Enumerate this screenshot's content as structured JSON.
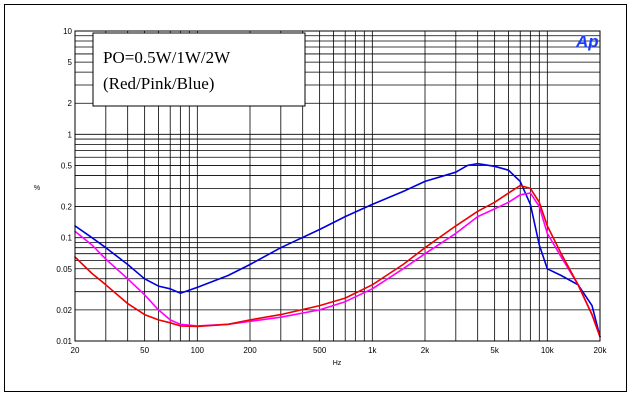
{
  "chart_data": {
    "type": "line",
    "title": "",
    "xlabel": "Hz",
    "ylabel": "%",
    "xscale": "log",
    "yscale": "log",
    "xlim": [
      20,
      20000
    ],
    "ylim": [
      0.01,
      10
    ],
    "grid": true,
    "x_ticks": [
      20,
      50,
      100,
      200,
      500,
      1000,
      2000,
      5000,
      10000,
      20000
    ],
    "x_tick_labels": [
      "20",
      "50",
      "100",
      "200",
      "500",
      "1k",
      "2k",
      "5k",
      "10k",
      "20k"
    ],
    "y_ticks": [
      0.01,
      0.02,
      0.05,
      0.1,
      0.2,
      0.5,
      1,
      2,
      5,
      10
    ],
    "y_tick_labels": [
      "0.01",
      "0.02",
      "0.05",
      "0.1",
      "0.2",
      "0.5",
      "1",
      "2",
      "5",
      "10"
    ],
    "annotation": [
      "PO=0.5W/1W/2W",
      "(Red/Pink/Blue)"
    ],
    "logo": "Ap",
    "series": [
      {
        "color": "#0000dd",
        "x": [
          20,
          25,
          30,
          40,
          50,
          60,
          70,
          80,
          100,
          150,
          200,
          300,
          500,
          700,
          1000,
          1500,
          2000,
          3000,
          3500,
          4000,
          5000,
          6000,
          7000,
          8000,
          9000,
          10000,
          12000,
          15000,
          18000,
          20000
        ],
        "y": [
          0.13,
          0.1,
          0.08,
          0.055,
          0.04,
          0.034,
          0.032,
          0.029,
          0.033,
          0.043,
          0.055,
          0.08,
          0.12,
          0.16,
          0.21,
          0.28,
          0.35,
          0.43,
          0.5,
          0.52,
          0.49,
          0.45,
          0.35,
          0.21,
          0.085,
          0.05,
          0.043,
          0.035,
          0.022,
          0.011
        ]
      },
      {
        "color": "#ff00ff",
        "x": [
          20,
          25,
          30,
          40,
          50,
          60,
          70,
          80,
          100,
          150,
          200,
          300,
          500,
          700,
          1000,
          1500,
          2000,
          3000,
          4000,
          5000,
          6000,
          7000,
          8000,
          9000,
          10000,
          12000,
          15000,
          18000,
          20000
        ],
        "y": [
          0.115,
          0.085,
          0.062,
          0.04,
          0.028,
          0.02,
          0.016,
          0.0145,
          0.014,
          0.0145,
          0.0155,
          0.017,
          0.02,
          0.024,
          0.032,
          0.05,
          0.07,
          0.11,
          0.16,
          0.19,
          0.22,
          0.26,
          0.27,
          0.2,
          0.11,
          0.065,
          0.035,
          0.018,
          0.011
        ]
      },
      {
        "color": "#ee0000",
        "x": [
          20,
          25,
          30,
          40,
          50,
          60,
          70,
          80,
          100,
          150,
          200,
          300,
          500,
          700,
          1000,
          1500,
          2000,
          3000,
          4000,
          5000,
          6000,
          7000,
          8000,
          9000,
          10000,
          12000,
          15000,
          18000,
          20000
        ],
        "y": [
          0.065,
          0.045,
          0.035,
          0.023,
          0.018,
          0.016,
          0.015,
          0.014,
          0.0138,
          0.0145,
          0.016,
          0.018,
          0.022,
          0.026,
          0.035,
          0.055,
          0.08,
          0.13,
          0.18,
          0.22,
          0.27,
          0.32,
          0.3,
          0.22,
          0.13,
          0.07,
          0.035,
          0.018,
          0.011
        ]
      }
    ]
  }
}
